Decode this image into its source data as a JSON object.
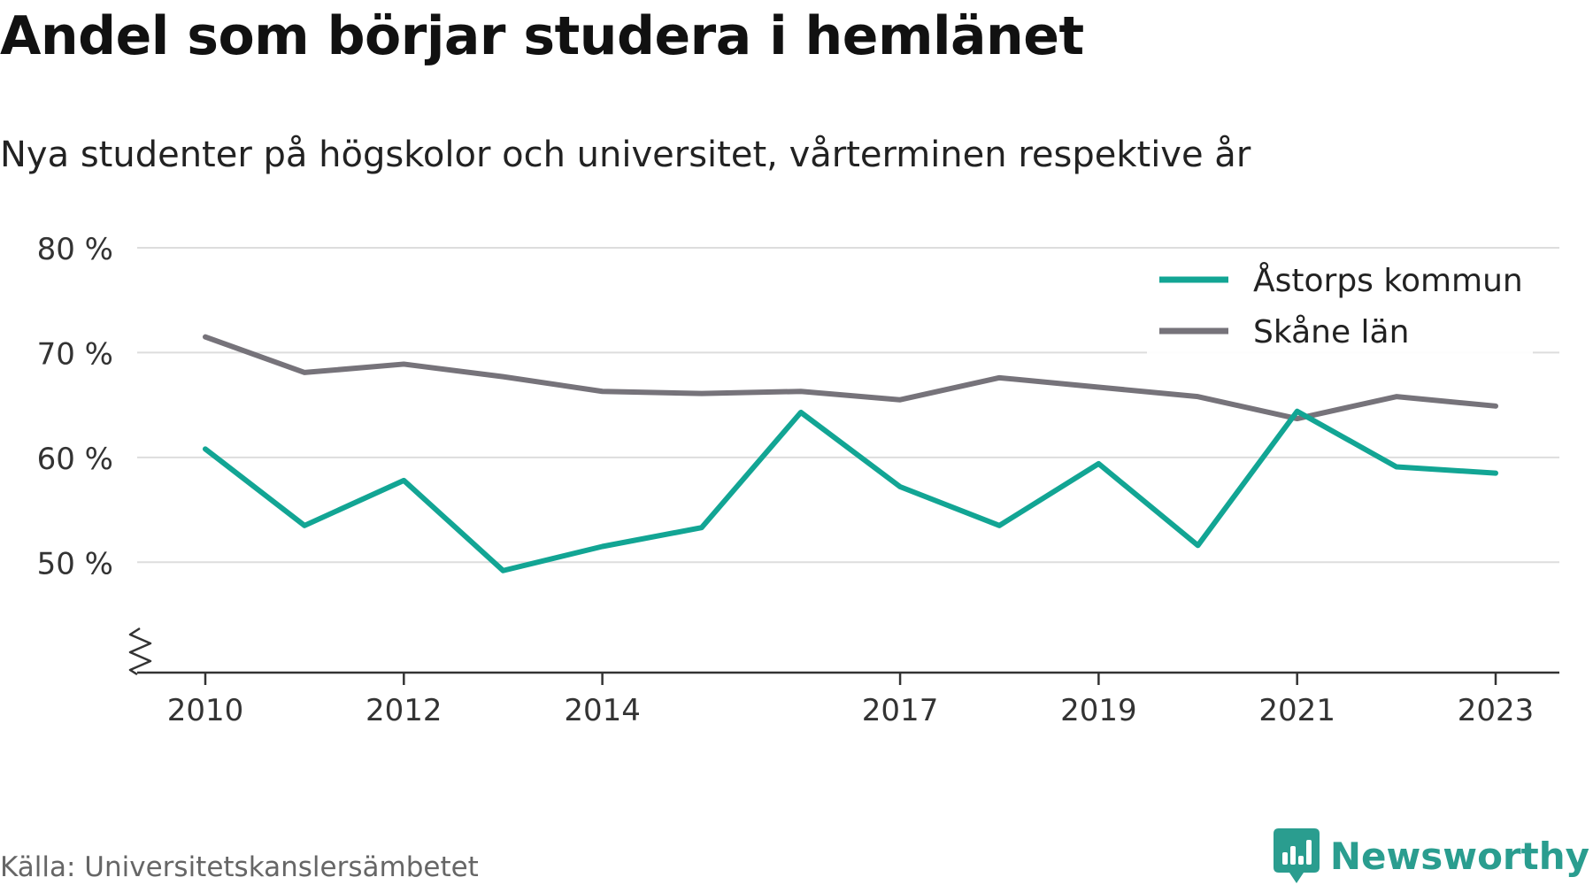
{
  "title": "Andel som börjar studera i hemlänet",
  "subtitle": "Nya studenter på högskolor och universitet, vårterminen respektive år",
  "source": "Källa: Universitetskanslersämbetet",
  "brand": {
    "name": "Newsworthy",
    "icon": "newsworthy-logo-icon",
    "color": "#2a9d8f"
  },
  "chart_data": {
    "type": "line",
    "title": "Andel som börjar studera i hemlänet",
    "subtitle": "Nya studenter på högskolor och universitet, vårterminen respektive år",
    "x": [
      2010,
      2011,
      2012,
      2013,
      2014,
      2015,
      2016,
      2017,
      2018,
      2019,
      2020,
      2021,
      2022,
      2023
    ],
    "xticks": [
      2010,
      2012,
      2014,
      2017,
      2019,
      2021,
      2023
    ],
    "xtick_labels": [
      "2010",
      "2012",
      "2014",
      "2017",
      "2019",
      "2021",
      "2023"
    ],
    "yticks": [
      50,
      60,
      70,
      80
    ],
    "ytick_labels": [
      "50 %",
      "60 %",
      "70 %",
      "80 %"
    ],
    "ylim": [
      42,
      80
    ],
    "axis_break": true,
    "grid": true,
    "legend_position": "top-right",
    "series": [
      {
        "name": "Åstorps kommun",
        "color": "#12a594",
        "values": [
          60.8,
          53.5,
          57.8,
          49.2,
          51.5,
          53.3,
          64.3,
          57.2,
          53.5,
          59.4,
          51.6,
          64.4,
          59.1,
          58.5
        ]
      },
      {
        "name": "Skåne län",
        "color": "#76737a",
        "values": [
          71.5,
          68.1,
          68.9,
          67.7,
          66.3,
          66.1,
          66.3,
          65.5,
          67.6,
          66.7,
          65.8,
          63.7,
          65.8,
          64.9
        ]
      }
    ]
  }
}
